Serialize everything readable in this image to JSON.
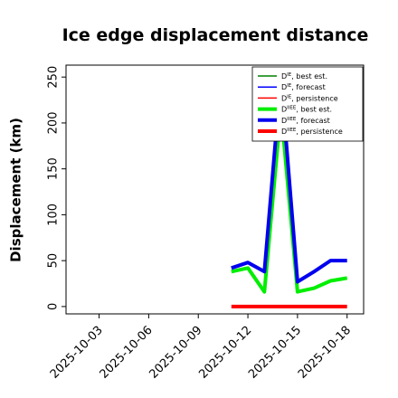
{
  "chart_data": {
    "type": "line",
    "title": "Ice edge displacement distance",
    "ylabel": "Displacement (km)",
    "xlabel": "",
    "ylim": [
      -8,
      263
    ],
    "xlim": [
      "2025-10-01T00:00",
      "2025-10-19T00:00"
    ],
    "yticks": [
      0,
      50,
      100,
      150,
      200,
      250
    ],
    "xticks": [
      {
        "label": "2025-10-03",
        "date": "2025-10-03",
        "color": "#000000"
      },
      {
        "label": "2025-10-06",
        "date": "2025-10-06",
        "color": "#000000"
      },
      {
        "label": "2025-10-09",
        "date": "2025-10-09",
        "color": "#228B22"
      },
      {
        "label": "2025-10-12",
        "date": "2025-10-12",
        "color": "#000000"
      },
      {
        "label": "2025-10-15",
        "date": "2025-10-15",
        "color": "#000000"
      },
      {
        "label": "2025-10-18",
        "date": "2025-10-18",
        "color": "#000000"
      }
    ],
    "grid": false,
    "legend_position": "top-right",
    "series": [
      {
        "name": "D^IE, best est.",
        "legend_base": "D",
        "legend_sup": "IE",
        "legend_suffix": ", best est.",
        "color": "#008000",
        "width": "thin",
        "x": [],
        "y": []
      },
      {
        "name": "D^IE, forecast",
        "legend_base": "D",
        "legend_sup": "IE",
        "legend_suffix": ", forecast",
        "color": "#0000ff",
        "width": "thin",
        "x": [],
        "y": []
      },
      {
        "name": "D^IE, persistence",
        "legend_base": "D",
        "legend_sup": "IE",
        "legend_suffix": ", persistence",
        "color": "#ff0000",
        "width": "thin",
        "x": [],
        "y": []
      },
      {
        "name": "D^IIEE, best est.",
        "legend_base": "D",
        "legend_sup": "IIEE",
        "legend_suffix": ", best est.",
        "color": "#00ee00",
        "width": "thick",
        "x": [
          "2025-10-11T00:00",
          "2025-10-12T00:00",
          "2025-10-13T00:00",
          "2025-10-14T00:00",
          "2025-10-15T00:00",
          "2025-10-16T00:00",
          "2025-10-17T00:00",
          "2025-10-18T00:00"
        ],
        "y": [
          38,
          42,
          16,
          215,
          16,
          20,
          28,
          31
        ]
      },
      {
        "name": "D^IIEE, forecast",
        "legend_base": "D",
        "legend_sup": "IIEE",
        "legend_suffix": ", forecast",
        "color": "#0000ee",
        "width": "thick",
        "x": [
          "2025-10-11T00:00",
          "2025-10-12T00:00",
          "2025-10-13T00:00",
          "2025-10-14T00:00",
          "2025-10-15T00:00",
          "2025-10-16T00:00",
          "2025-10-17T00:00",
          "2025-10-18T00:00"
        ],
        "y": [
          42,
          48,
          38,
          250,
          27,
          38,
          50,
          50
        ]
      },
      {
        "name": "D^IIEE, persistence",
        "legend_base": "D",
        "legend_sup": "IIEE",
        "legend_suffix": ", persistence",
        "color": "#ff0000",
        "width": "thick",
        "x": [
          "2025-10-11T00:00",
          "2025-10-12T00:00",
          "2025-10-13T00:00",
          "2025-10-14T00:00",
          "2025-10-15T00:00",
          "2025-10-16T00:00",
          "2025-10-17T00:00",
          "2025-10-18T00:00"
        ],
        "y": [
          0,
          0,
          0,
          0,
          0,
          0,
          0,
          0
        ]
      }
    ]
  }
}
